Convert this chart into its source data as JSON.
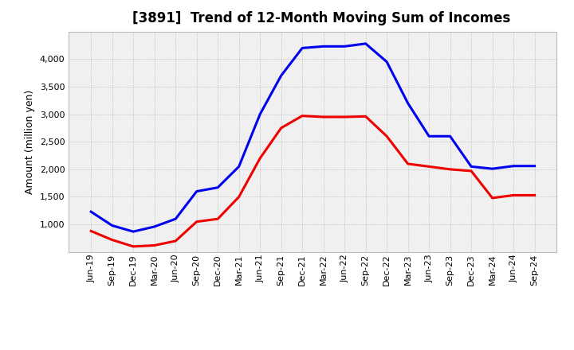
{
  "title": "[3891]  Trend of 12-Month Moving Sum of Incomes",
  "ylabel": "Amount (million yen)",
  "background_color": "#ffffff",
  "plot_bg_color": "#f0f0f0",
  "grid_color": "#888888",
  "x_labels": [
    "Jun-19",
    "Sep-19",
    "Dec-19",
    "Mar-20",
    "Jun-20",
    "Sep-20",
    "Dec-20",
    "Mar-21",
    "Jun-21",
    "Sep-21",
    "Dec-21",
    "Mar-22",
    "Jun-22",
    "Sep-22",
    "Dec-22",
    "Mar-23",
    "Jun-23",
    "Sep-23",
    "Dec-23",
    "Mar-24",
    "Jun-24",
    "Sep-24"
  ],
  "ordinary_income": [
    1230,
    980,
    870,
    960,
    1100,
    1600,
    1670,
    2050,
    3000,
    3700,
    4200,
    4230,
    4230,
    4280,
    3950,
    3200,
    2600,
    2600,
    2050,
    2010,
    2060,
    2060
  ],
  "net_income": [
    880,
    720,
    600,
    620,
    700,
    1050,
    1100,
    1500,
    2200,
    2750,
    2970,
    2950,
    2950,
    2960,
    2600,
    2100,
    2050,
    2000,
    1970,
    1480,
    1530,
    1530
  ],
  "ordinary_color": "#0000ee",
  "net_color": "#ee0000",
  "ylim_min": 500,
  "ylim_max": 4500,
  "yticks": [
    1000,
    1500,
    2000,
    2500,
    3000,
    3500,
    4000
  ],
  "line_width": 2.2,
  "title_fontsize": 12,
  "tick_fontsize": 8,
  "ylabel_fontsize": 9
}
